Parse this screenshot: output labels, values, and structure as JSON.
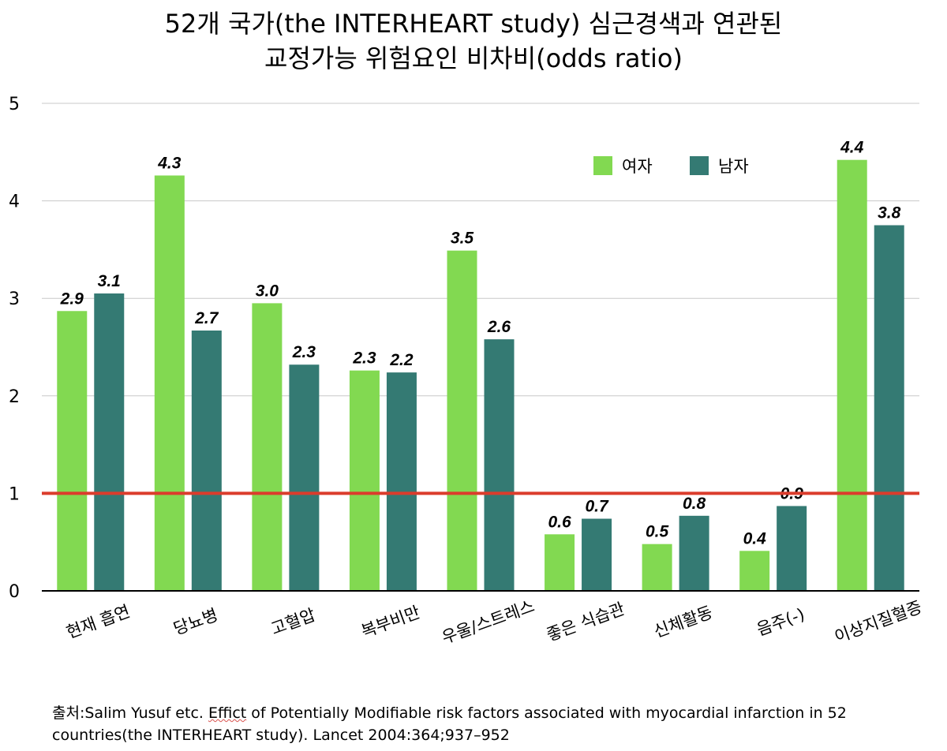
{
  "chart_data": {
    "type": "bar",
    "title_lines": [
      "52개 국가(the INTERHEART study) 심근경색과 연관된",
      "교정가능 위험요인 비차비(odds ratio)"
    ],
    "categories": [
      "현재 흡연",
      "당뇨병",
      "고혈압",
      "복부비만",
      "우울/스트레스",
      "좋은 식습관",
      "신체활동",
      "음주(-)",
      "이상지질혈증"
    ],
    "series": [
      {
        "name": "여자",
        "color": "#82d951",
        "values": [
          2.87,
          4.26,
          2.95,
          2.26,
          3.49,
          0.58,
          0.48,
          0.41,
          4.42
        ],
        "labels": [
          "2.9",
          "4.3",
          "3.0",
          "2.3",
          "3.5",
          "0.6",
          "0.5",
          "0.4",
          "4.4"
        ]
      },
      {
        "name": "남자",
        "color": "#347a73",
        "values": [
          3.05,
          2.67,
          2.32,
          2.24,
          2.58,
          0.74,
          0.77,
          0.87,
          3.75
        ],
        "labels": [
          "3.1",
          "2.7",
          "2.3",
          "2.2",
          "2.6",
          "0.7",
          "0.8",
          "0.9",
          "3.8"
        ]
      }
    ],
    "yticks": [
      "0",
      "1",
      "2",
      "3",
      "4",
      "5"
    ],
    "ylim": [
      0,
      5
    ],
    "reference_line": {
      "y": 1,
      "color": "#db3c2c"
    },
    "grid": true,
    "legend_position": "top-right"
  },
  "source": {
    "prefix": "출처:Salim Yusuf etc. ",
    "misspelled": "Effict",
    "rest": " of Potentially Modifiable risk factors associated with myocardial infarction in 52 countries(the INTERHEART study). Lancet 2004:364;937–952"
  }
}
